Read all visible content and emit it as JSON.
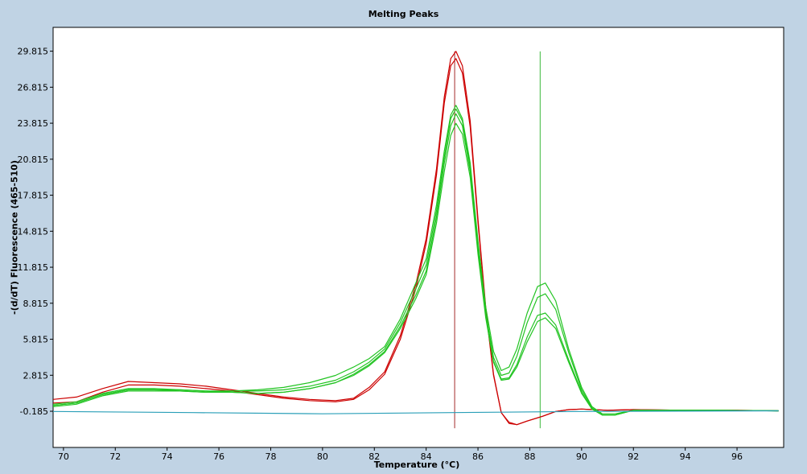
{
  "chart_data": {
    "type": "line",
    "title": "Melting Peaks",
    "xlabel": "Temperature (°C)",
    "ylabel": "-(d/dT) Fluorescence (465-510)",
    "xlim": [
      69.6,
      97.8
    ],
    "ylim": [
      -3.2,
      31.8
    ],
    "x_ticks": [
      70,
      72,
      74,
      76,
      78,
      80,
      82,
      84,
      86,
      88,
      90,
      92,
      94,
      96
    ],
    "y_ticks": [
      -0.185,
      2.815,
      5.815,
      8.815,
      11.815,
      14.815,
      17.815,
      20.815,
      23.815,
      26.815,
      29.815
    ],
    "y_tick_labels": [
      "-0.185",
      "2.815",
      "5.815",
      "8.815",
      "11.815",
      "14.815",
      "17.815",
      "20.815",
      "23.815",
      "26.815",
      "29.815"
    ],
    "grid": false,
    "vertical_markers": [
      {
        "x": 85.1,
        "color": "#a52a2a",
        "y_range": [
          -1.6,
          29.8
        ]
      },
      {
        "x": 88.4,
        "color": "#3cb83c",
        "y_range": [
          -1.6,
          29.8
        ]
      }
    ],
    "series": [
      {
        "color": "#cc0000",
        "points": [
          [
            69.6,
            0.5
          ],
          [
            70.5,
            0.6
          ],
          [
            71.5,
            1.4
          ],
          [
            72.5,
            2.0
          ],
          [
            73.5,
            2.0
          ],
          [
            74.5,
            1.9
          ],
          [
            75.5,
            1.7
          ],
          [
            76.5,
            1.5
          ],
          [
            77.5,
            1.2
          ],
          [
            78.5,
            0.9
          ],
          [
            79.5,
            0.7
          ],
          [
            80.5,
            0.6
          ],
          [
            81.2,
            0.8
          ],
          [
            81.8,
            1.6
          ],
          [
            82.4,
            2.9
          ],
          [
            83.0,
            5.8
          ],
          [
            83.6,
            10.0
          ],
          [
            84.0,
            13.8
          ],
          [
            84.4,
            19.5
          ],
          [
            84.7,
            25.5
          ],
          [
            84.95,
            28.6
          ],
          [
            85.15,
            29.2
          ],
          [
            85.4,
            28.0
          ],
          [
            85.7,
            23.5
          ],
          [
            86.0,
            15.5
          ],
          [
            86.3,
            8.3
          ],
          [
            86.6,
            2.8
          ],
          [
            86.9,
            -0.3
          ],
          [
            87.2,
            -1.2
          ],
          [
            87.5,
            -1.3
          ],
          [
            87.9,
            -1.0
          ],
          [
            88.5,
            -0.6
          ],
          [
            89.0,
            -0.2
          ],
          [
            89.5,
            -0.05
          ],
          [
            90.0,
            0.0
          ],
          [
            91.0,
            -0.1
          ],
          [
            92.0,
            -0.05
          ],
          [
            94.0,
            -0.1
          ],
          [
            96.0,
            -0.1
          ],
          [
            97.6,
            -0.15
          ]
        ]
      },
      {
        "color": "#cc0000",
        "points": [
          [
            69.6,
            0.8
          ],
          [
            70.5,
            1.0
          ],
          [
            71.5,
            1.7
          ],
          [
            72.5,
            2.3
          ],
          [
            73.5,
            2.2
          ],
          [
            74.5,
            2.1
          ],
          [
            75.5,
            1.9
          ],
          [
            76.5,
            1.6
          ],
          [
            77.5,
            1.3
          ],
          [
            78.5,
            1.0
          ],
          [
            79.5,
            0.8
          ],
          [
            80.5,
            0.7
          ],
          [
            81.2,
            0.9
          ],
          [
            81.8,
            1.8
          ],
          [
            82.4,
            3.1
          ],
          [
            83.0,
            6.1
          ],
          [
            83.6,
            10.4
          ],
          [
            84.0,
            14.2
          ],
          [
            84.4,
            20.0
          ],
          [
            84.7,
            26.0
          ],
          [
            84.95,
            29.2
          ],
          [
            85.15,
            29.8
          ],
          [
            85.4,
            28.6
          ],
          [
            85.7,
            24.0
          ],
          [
            86.0,
            15.8
          ],
          [
            86.3,
            8.5
          ],
          [
            86.6,
            2.9
          ],
          [
            86.9,
            -0.3
          ],
          [
            87.2,
            -1.1
          ],
          [
            87.5,
            -1.3
          ],
          [
            87.9,
            -1.0
          ],
          [
            88.5,
            -0.6
          ],
          [
            89.0,
            -0.2
          ],
          [
            89.5,
            -0.05
          ],
          [
            90.0,
            0.0
          ],
          [
            91.0,
            -0.1
          ],
          [
            92.0,
            -0.05
          ],
          [
            94.0,
            -0.1
          ],
          [
            96.0,
            -0.1
          ],
          [
            97.6,
            -0.15
          ]
        ]
      },
      {
        "color": "#22c422",
        "points": [
          [
            69.6,
            0.2
          ],
          [
            70.5,
            0.4
          ],
          [
            71.5,
            1.1
          ],
          [
            72.5,
            1.5
          ],
          [
            73.5,
            1.5
          ],
          [
            74.5,
            1.5
          ],
          [
            75.5,
            1.4
          ],
          [
            76.5,
            1.5
          ],
          [
            77.5,
            1.6
          ],
          [
            78.5,
            1.8
          ],
          [
            79.5,
            2.2
          ],
          [
            80.5,
            2.8
          ],
          [
            81.2,
            3.5
          ],
          [
            81.8,
            4.2
          ],
          [
            82.4,
            5.2
          ],
          [
            83.0,
            7.5
          ],
          [
            83.6,
            10.5
          ],
          [
            84.0,
            12.5
          ],
          [
            84.4,
            17.0
          ],
          [
            84.7,
            21.5
          ],
          [
            84.95,
            24.5
          ],
          [
            85.15,
            25.3
          ],
          [
            85.4,
            24.2
          ],
          [
            85.7,
            20.5
          ],
          [
            86.0,
            14.0
          ],
          [
            86.3,
            8.5
          ],
          [
            86.6,
            4.8
          ],
          [
            86.9,
            3.2
          ],
          [
            87.2,
            3.5
          ],
          [
            87.5,
            5.0
          ],
          [
            87.9,
            8.0
          ],
          [
            88.3,
            10.2
          ],
          [
            88.6,
            10.5
          ],
          [
            89.0,
            9.0
          ],
          [
            89.5,
            5.0
          ],
          [
            90.0,
            1.8
          ],
          [
            90.4,
            0.2
          ],
          [
            90.8,
            -0.4
          ],
          [
            91.3,
            -0.4
          ],
          [
            92.0,
            -0.1
          ],
          [
            93.0,
            -0.1
          ],
          [
            95.0,
            -0.1
          ],
          [
            97.6,
            -0.15
          ]
        ]
      },
      {
        "color": "#22c422",
        "points": [
          [
            69.6,
            0.3
          ],
          [
            70.5,
            0.5
          ],
          [
            71.5,
            1.2
          ],
          [
            72.5,
            1.6
          ],
          [
            73.5,
            1.6
          ],
          [
            74.5,
            1.6
          ],
          [
            75.5,
            1.5
          ],
          [
            76.5,
            1.5
          ],
          [
            77.5,
            1.5
          ],
          [
            78.5,
            1.6
          ],
          [
            79.5,
            1.9
          ],
          [
            80.5,
            2.4
          ],
          [
            81.2,
            3.1
          ],
          [
            81.8,
            3.9
          ],
          [
            82.4,
            5.0
          ],
          [
            83.0,
            7.2
          ],
          [
            83.6,
            10.0
          ],
          [
            84.0,
            12.0
          ],
          [
            84.4,
            16.5
          ],
          [
            84.7,
            21.0
          ],
          [
            84.95,
            24.2
          ],
          [
            85.15,
            25.0
          ],
          [
            85.4,
            24.0
          ],
          [
            85.7,
            20.2
          ],
          [
            86.0,
            13.5
          ],
          [
            86.3,
            8.0
          ],
          [
            86.6,
            4.3
          ],
          [
            86.9,
            2.8
          ],
          [
            87.2,
            3.0
          ],
          [
            87.5,
            4.4
          ],
          [
            87.9,
            7.2
          ],
          [
            88.3,
            9.3
          ],
          [
            88.6,
            9.6
          ],
          [
            89.0,
            8.3
          ],
          [
            89.5,
            4.7
          ],
          [
            90.0,
            1.6
          ],
          [
            90.4,
            0.1
          ],
          [
            90.8,
            -0.5
          ],
          [
            91.3,
            -0.5
          ],
          [
            92.0,
            -0.1
          ],
          [
            93.0,
            -0.1
          ],
          [
            95.0,
            -0.1
          ],
          [
            97.6,
            -0.15
          ]
        ]
      },
      {
        "color": "#22c422",
        "points": [
          [
            69.6,
            0.4
          ],
          [
            70.5,
            0.6
          ],
          [
            71.5,
            1.3
          ],
          [
            72.5,
            1.7
          ],
          [
            73.5,
            1.7
          ],
          [
            74.5,
            1.6
          ],
          [
            75.5,
            1.5
          ],
          [
            76.5,
            1.4
          ],
          [
            77.5,
            1.3
          ],
          [
            78.5,
            1.4
          ],
          [
            79.5,
            1.7
          ],
          [
            80.5,
            2.2
          ],
          [
            81.2,
            2.9
          ],
          [
            81.8,
            3.7
          ],
          [
            82.4,
            4.8
          ],
          [
            83.0,
            6.9
          ],
          [
            83.6,
            9.5
          ],
          [
            84.0,
            11.5
          ],
          [
            84.4,
            16.0
          ],
          [
            84.7,
            20.5
          ],
          [
            84.95,
            23.6
          ],
          [
            85.15,
            24.6
          ],
          [
            85.4,
            23.6
          ],
          [
            85.7,
            19.8
          ],
          [
            86.0,
            13.2
          ],
          [
            86.3,
            7.8
          ],
          [
            86.6,
            4.0
          ],
          [
            86.9,
            2.5
          ],
          [
            87.2,
            2.6
          ],
          [
            87.5,
            3.7
          ],
          [
            87.9,
            6.0
          ],
          [
            88.3,
            7.8
          ],
          [
            88.6,
            8.0
          ],
          [
            89.0,
            7.0
          ],
          [
            89.5,
            4.1
          ],
          [
            90.0,
            1.4
          ],
          [
            90.4,
            0.0
          ],
          [
            90.8,
            -0.5
          ],
          [
            91.3,
            -0.5
          ],
          [
            92.0,
            -0.1
          ],
          [
            93.0,
            -0.1
          ],
          [
            95.0,
            -0.1
          ],
          [
            97.6,
            -0.15
          ]
        ]
      },
      {
        "color": "#22c422",
        "points": [
          [
            69.6,
            0.3
          ],
          [
            70.5,
            0.5
          ],
          [
            71.5,
            1.2
          ],
          [
            72.5,
            1.6
          ],
          [
            73.5,
            1.6
          ],
          [
            74.5,
            1.5
          ],
          [
            75.5,
            1.4
          ],
          [
            76.5,
            1.4
          ],
          [
            77.5,
            1.3
          ],
          [
            78.5,
            1.4
          ],
          [
            79.5,
            1.7
          ],
          [
            80.5,
            2.2
          ],
          [
            81.2,
            2.8
          ],
          [
            81.8,
            3.6
          ],
          [
            82.4,
            4.7
          ],
          [
            83.0,
            6.7
          ],
          [
            83.6,
            9.2
          ],
          [
            84.0,
            11.2
          ],
          [
            84.4,
            15.5
          ],
          [
            84.7,
            19.8
          ],
          [
            84.95,
            22.8
          ],
          [
            85.15,
            23.8
          ],
          [
            85.4,
            22.9
          ],
          [
            85.7,
            19.3
          ],
          [
            86.0,
            12.9
          ],
          [
            86.3,
            7.6
          ],
          [
            86.6,
            3.9
          ],
          [
            86.9,
            2.4
          ],
          [
            87.2,
            2.5
          ],
          [
            87.5,
            3.5
          ],
          [
            87.9,
            5.6
          ],
          [
            88.3,
            7.3
          ],
          [
            88.6,
            7.6
          ],
          [
            89.0,
            6.7
          ],
          [
            89.5,
            3.9
          ],
          [
            90.0,
            1.3
          ],
          [
            90.4,
            0.0
          ],
          [
            90.8,
            -0.5
          ],
          [
            91.3,
            -0.5
          ],
          [
            92.0,
            -0.1
          ],
          [
            93.0,
            -0.1
          ],
          [
            95.0,
            -0.1
          ],
          [
            97.6,
            -0.15
          ]
        ]
      },
      {
        "color": "#2a9fb8",
        "points": [
          [
            69.6,
            -0.2
          ],
          [
            75.0,
            -0.3
          ],
          [
            80.0,
            -0.4
          ],
          [
            85.0,
            -0.3
          ],
          [
            90.0,
            -0.2
          ],
          [
            97.6,
            -0.15
          ]
        ]
      }
    ]
  }
}
